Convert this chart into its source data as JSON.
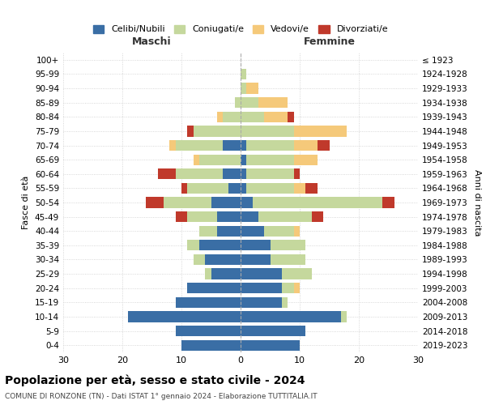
{
  "age_groups": [
    "0-4",
    "5-9",
    "10-14",
    "15-19",
    "20-24",
    "25-29",
    "30-34",
    "35-39",
    "40-44",
    "45-49",
    "50-54",
    "55-59",
    "60-64",
    "65-69",
    "70-74",
    "75-79",
    "80-84",
    "85-89",
    "90-94",
    "95-99",
    "100+"
  ],
  "birth_years": [
    "2019-2023",
    "2014-2018",
    "2009-2013",
    "2004-2008",
    "1999-2003",
    "1994-1998",
    "1989-1993",
    "1984-1988",
    "1979-1983",
    "1974-1978",
    "1969-1973",
    "1964-1968",
    "1959-1963",
    "1954-1958",
    "1949-1953",
    "1944-1948",
    "1939-1943",
    "1934-1938",
    "1929-1933",
    "1924-1928",
    "≤ 1923"
  ],
  "colors": {
    "celibi": "#3A6EA5",
    "coniugati": "#C5D89D",
    "vedovi": "#F5C97A",
    "divorziati": "#C0392B"
  },
  "maschi": {
    "celibi": [
      10,
      11,
      19,
      11,
      9,
      5,
      6,
      7,
      4,
      4,
      5,
      2,
      3,
      0,
      3,
      0,
      0,
      0,
      0,
      0,
      0
    ],
    "coniugati": [
      0,
      0,
      0,
      0,
      0,
      1,
      2,
      2,
      3,
      5,
      8,
      7,
      8,
      7,
      8,
      8,
      3,
      1,
      0,
      0,
      0
    ],
    "vedovi": [
      0,
      0,
      0,
      0,
      0,
      0,
      0,
      0,
      0,
      0,
      0,
      0,
      0,
      1,
      1,
      0,
      1,
      0,
      0,
      0,
      0
    ],
    "divorziati": [
      0,
      0,
      0,
      0,
      0,
      0,
      0,
      0,
      0,
      2,
      3,
      1,
      3,
      0,
      0,
      1,
      0,
      0,
      0,
      0,
      0
    ]
  },
  "femmine": {
    "celibi": [
      10,
      11,
      17,
      7,
      7,
      7,
      5,
      5,
      4,
      3,
      2,
      1,
      1,
      1,
      1,
      0,
      0,
      0,
      0,
      0,
      0
    ],
    "coniugati": [
      0,
      0,
      1,
      1,
      2,
      5,
      6,
      6,
      5,
      9,
      22,
      8,
      8,
      8,
      8,
      9,
      4,
      3,
      1,
      1,
      0
    ],
    "vedovi": [
      0,
      0,
      0,
      0,
      1,
      0,
      0,
      0,
      1,
      0,
      0,
      2,
      0,
      4,
      4,
      9,
      4,
      5,
      2,
      0,
      0
    ],
    "divorziati": [
      0,
      0,
      0,
      0,
      0,
      0,
      0,
      0,
      0,
      2,
      2,
      2,
      1,
      0,
      2,
      0,
      1,
      0,
      0,
      0,
      0
    ]
  },
  "xlim": 30,
  "title": "Popolazione per età, sesso e stato civile - 2024",
  "subtitle": "COMUNE DI RONZONE (TN) - Dati ISTAT 1° gennaio 2024 - Elaborazione TUTTITALIA.IT",
  "ylabel": "Fasce di età",
  "ylabel_right": "Anni di nascita",
  "xlabel_left": "Maschi",
  "xlabel_right": "Femmine",
  "legend_labels": [
    "Celibi/Nubili",
    "Coniugati/e",
    "Vedovi/e",
    "Divorziati/e"
  ],
  "background_color": "#FFFFFF",
  "grid_color": "#CCCCCC"
}
